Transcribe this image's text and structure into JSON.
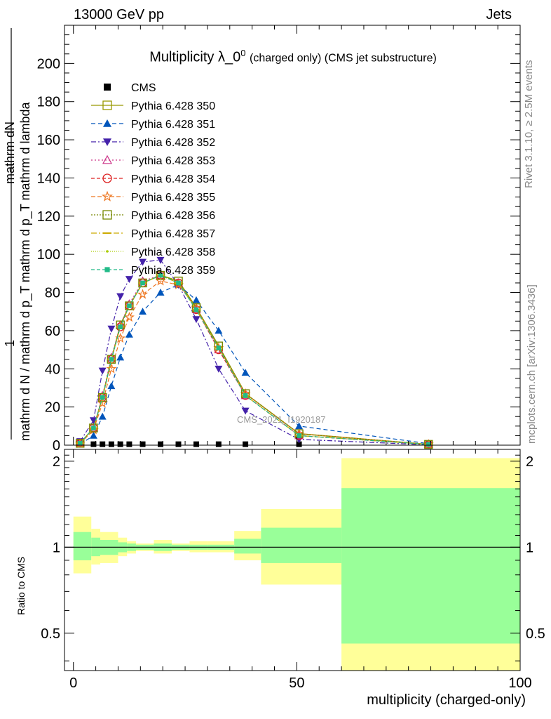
{
  "header": {
    "left": "13000 GeV pp",
    "right": "Jets"
  },
  "side_labels": {
    "rivet": "Rivet 3.1.10, ≥ 2.5M events",
    "mcplots": "mcplots.cern.ch [arXiv:1306.3436]"
  },
  "watermark": "CMS_2021_I1920187",
  "chart_data": [
    {
      "type": "line",
      "title": "Multiplicity λ_0",
      "title_sup": "0",
      "subtitle": "(charged only) (CMS jet substructure)",
      "ylabel_numerator": "mathrm dN",
      "ylabel_denominator": "mathrm d N / mathrm d p_T mathrm d p_T mathrm d lambda",
      "ylabel_prefix": "1",
      "xlim": [
        -2,
        100
      ],
      "ylim": [
        0,
        220
      ],
      "yticks": [
        0,
        20,
        40,
        60,
        80,
        100,
        120,
        140,
        160,
        180,
        200
      ],
      "xticks": [
        0,
        50,
        100
      ],
      "legend_position": "top-left",
      "x": [
        1.5,
        4.5,
        6.5,
        8.5,
        10.5,
        12.5,
        15.5,
        19.5,
        23.5,
        27.5,
        32.5,
        38.5,
        50.5,
        79.5
      ],
      "series": [
        {
          "name": "CMS",
          "color": "#000000",
          "marker": "square-filled",
          "dash": "none",
          "values": [
            0.5,
            0.5,
            0.5,
            0.5,
            0.5,
            0.5,
            0.5,
            0.5,
            0.5,
            0.5,
            0.5,
            0.5,
            0.5,
            0.5
          ]
        },
        {
          "name": "Pythia 6.428 350",
          "color": "#999900",
          "marker": "square-open",
          "dash": "solid",
          "values": [
            1,
            9,
            25,
            45,
            63,
            73,
            85,
            89,
            86,
            72,
            52,
            27,
            6,
            0.4
          ]
        },
        {
          "name": "Pythia 6.428 351",
          "color": "#0055bb",
          "marker": "triangle-up-filled",
          "dash": "6,4",
          "values": [
            0.5,
            5,
            15,
            31,
            46,
            58,
            70,
            80,
            84,
            76,
            60,
            38,
            10,
            0.8
          ]
        },
        {
          "name": "Pythia 6.428 352",
          "color": "#4422aa",
          "marker": "triangle-down-filled",
          "dash": "7,3,2,3",
          "values": [
            2,
            13,
            39,
            61,
            78,
            87,
            96,
            97,
            84,
            66,
            40,
            18,
            3,
            0.2
          ]
        },
        {
          "name": "Pythia 6.428 353",
          "color": "#cc3388",
          "marker": "triangle-up-open",
          "dash": "2,3",
          "values": [
            1,
            9,
            26,
            46,
            63,
            74,
            86,
            89,
            85,
            71,
            50,
            26,
            5,
            0.4
          ]
        },
        {
          "name": "Pythia 6.428 354",
          "color": "#dd2222",
          "marker": "circle-open",
          "dash": "5,3",
          "values": [
            1,
            9,
            25,
            45,
            62,
            73,
            85,
            89,
            85,
            71,
            50,
            26,
            5,
            0.4
          ]
        },
        {
          "name": "Pythia 6.428 355",
          "color": "#ee7722",
          "marker": "star-open",
          "dash": "6,3",
          "values": [
            0.8,
            8,
            22,
            40,
            56,
            67,
            79,
            86,
            84,
            72,
            51,
            27,
            6,
            0.4
          ]
        },
        {
          "name": "Pythia 6.428 356",
          "color": "#778800",
          "marker": "square-open",
          "dash": "2,2",
          "values": [
            1,
            9,
            25,
            45,
            63,
            73,
            85,
            89,
            86,
            72,
            52,
            27,
            6,
            0.4
          ]
        },
        {
          "name": "Pythia 6.428 357",
          "color": "#ccaa00",
          "marker": "dash",
          "dash": "8,3,2,3",
          "values": [
            1,
            9,
            25,
            45,
            62,
            73,
            85,
            89,
            85,
            71,
            51,
            26,
            5,
            0.4
          ]
        },
        {
          "name": "Pythia 6.428 358",
          "color": "#aacc00",
          "marker": "dot",
          "dash": "1,2",
          "values": [
            1,
            9,
            25,
            45,
            62,
            73,
            85,
            89,
            85,
            71,
            51,
            26,
            5,
            0.4
          ]
        },
        {
          "name": "Pythia 6.428 359",
          "color": "#22bb88",
          "marker": "square-small-filled",
          "dash": "5,3",
          "values": [
            1,
            9,
            25,
            45,
            62,
            73,
            85,
            89,
            85,
            71,
            51,
            26,
            5,
            0.4
          ]
        }
      ]
    },
    {
      "type": "area",
      "ylabel": "Ratio to CMS",
      "xlabel": "multiplicity (charged-only)",
      "xlim": [
        -2,
        100
      ],
      "ylim": [
        0.37,
        2.2
      ],
      "yticks": [
        0.5,
        1,
        2
      ],
      "ytick_labels": [
        "0.5",
        "1",
        "2"
      ],
      "xticks": [
        0,
        50,
        100
      ],
      "xtick_labels": [
        "0",
        "50",
        "100"
      ],
      "reference_line": 1,
      "inner_band_color": "#99ff99",
      "outer_band_color": "#ffff99",
      "bins": [
        {
          "lo": 0,
          "hi": 4,
          "inner": [
            0.9,
            1.13
          ],
          "outer": [
            0.81,
            1.28
          ]
        },
        {
          "lo": 4,
          "hi": 6,
          "inner": [
            0.93,
            1.08
          ],
          "outer": [
            0.87,
            1.16
          ]
        },
        {
          "lo": 6,
          "hi": 10,
          "inner": [
            0.94,
            1.06
          ],
          "outer": [
            0.88,
            1.13
          ]
        },
        {
          "lo": 10,
          "hi": 12,
          "inner": [
            0.96,
            1.04
          ],
          "outer": [
            0.93,
            1.08
          ]
        },
        {
          "lo": 12,
          "hi": 14,
          "inner": [
            0.97,
            1.03
          ],
          "outer": [
            0.95,
            1.05
          ]
        },
        {
          "lo": 14,
          "hi": 18,
          "inner": [
            0.98,
            1.02
          ],
          "outer": [
            0.97,
            1.03
          ]
        },
        {
          "lo": 18,
          "hi": 22,
          "inner": [
            0.97,
            1.03
          ],
          "outer": [
            0.95,
            1.06
          ]
        },
        {
          "lo": 22,
          "hi": 26,
          "inner": [
            0.98,
            1.02
          ],
          "outer": [
            0.97,
            1.03
          ]
        },
        {
          "lo": 26,
          "hi": 30,
          "inner": [
            0.98,
            1.02
          ],
          "outer": [
            0.96,
            1.05
          ]
        },
        {
          "lo": 30,
          "hi": 36,
          "inner": [
            0.98,
            1.02
          ],
          "outer": [
            0.96,
            1.05
          ]
        },
        {
          "lo": 36,
          "hi": 42,
          "inner": [
            0.95,
            1.07
          ],
          "outer": [
            0.9,
            1.14
          ]
        },
        {
          "lo": 42,
          "hi": 60,
          "inner": [
            0.88,
            1.17
          ],
          "outer": [
            0.74,
            1.36
          ]
        },
        {
          "lo": 60,
          "hi": 100,
          "inner": [
            0.46,
            1.61
          ],
          "outer": [
            0.37,
            2.05
          ]
        }
      ]
    }
  ]
}
